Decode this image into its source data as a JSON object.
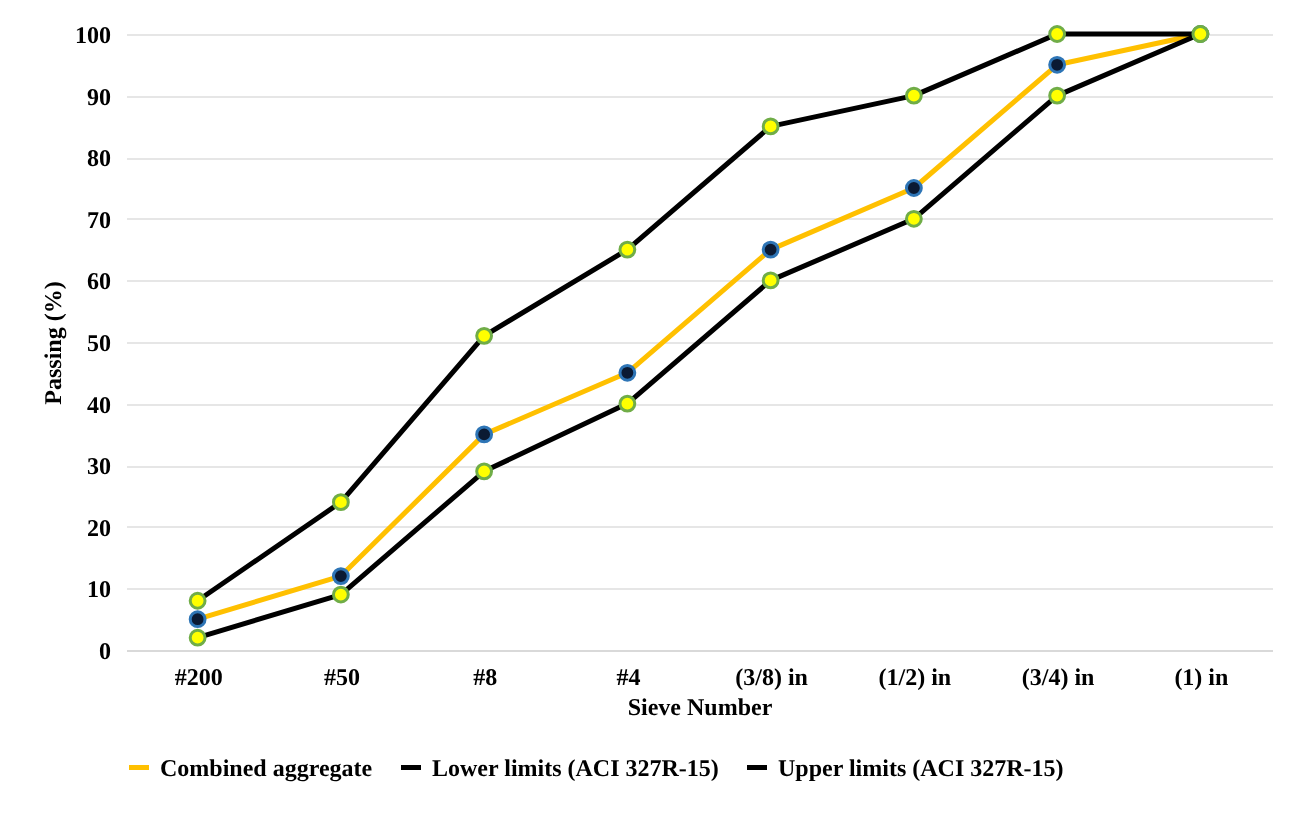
{
  "chart_data": {
    "type": "line",
    "xlabel": "Sieve Number",
    "ylabel": "Passing (%)",
    "categories": [
      "#200",
      "#50",
      "#8",
      "#4",
      "(3/8) in",
      "(1/2) in",
      "(3/4) in",
      "(1) in"
    ],
    "series": [
      {
        "name": "Combined aggregate",
        "color": "#ffc000",
        "values": [
          5,
          12,
          35,
          45,
          65,
          75,
          95,
          100
        ]
      },
      {
        "name": "Lower limits (ACI 327R-15)",
        "color": "#000000",
        "values": [
          2,
          9,
          29,
          40,
          60,
          70,
          90,
          100
        ]
      },
      {
        "name": "Upper limits (ACI 327R-15)",
        "color": "#000000",
        "values": [
          8,
          24,
          51,
          65,
          85,
          90,
          100,
          100
        ]
      }
    ],
    "ylim": [
      0,
      100
    ],
    "yticks": [
      0,
      10,
      20,
      30,
      40,
      50,
      60,
      70,
      80,
      90,
      100
    ],
    "grid": "y",
    "legend": "bottom",
    "marker": "circle",
    "line_style": "solid"
  }
}
